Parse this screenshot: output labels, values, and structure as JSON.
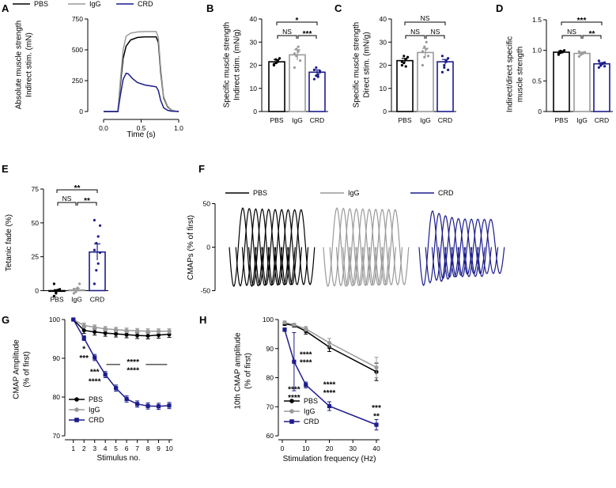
{
  "colors": {
    "pbs": "#000000",
    "igg": "#9a9a9a",
    "crd": "#1c1c8c"
  },
  "chart_data": [
    {
      "panel": "A",
      "type": "line",
      "ylabel_lines": [
        "Absolute muscle strength",
        "Indirect stim. (mN)"
      ],
      "xlabel": "Time (s)",
      "xlim": [
        0,
        1
      ],
      "ylim": [
        0,
        750
      ],
      "xticks": [
        0.0,
        0.5,
        1.0
      ],
      "yticks": [
        0,
        250,
        500,
        750
      ],
      "xtick_labels": [
        "0.0",
        "0.5",
        "1.0"
      ],
      "legend": [
        "PBS",
        "IgG",
        "CRD"
      ],
      "series": [
        {
          "name": "PBS",
          "color": "pbs",
          "x": [
            0,
            0.19,
            0.22,
            0.26,
            0.3,
            0.36,
            0.45,
            0.55,
            0.65,
            0.7,
            0.73,
            0.76,
            0.8,
            0.85,
            0.9,
            0.95,
            1.0
          ],
          "y": [
            0,
            0,
            200,
            430,
            530,
            580,
            600,
            605,
            605,
            605,
            560,
            320,
            110,
            40,
            12,
            3,
            0
          ]
        },
        {
          "name": "IgG",
          "color": "igg",
          "x": [
            0,
            0.19,
            0.22,
            0.26,
            0.3,
            0.36,
            0.45,
            0.55,
            0.65,
            0.7,
            0.73,
            0.76,
            0.8,
            0.85,
            0.9,
            0.95,
            1.0
          ],
          "y": [
            0,
            0,
            230,
            500,
            610,
            635,
            645,
            648,
            648,
            648,
            600,
            350,
            120,
            45,
            14,
            4,
            0
          ]
        },
        {
          "name": "CRD",
          "color": "crd",
          "x": [
            0,
            0.19,
            0.22,
            0.26,
            0.3,
            0.33,
            0.38,
            0.45,
            0.55,
            0.65,
            0.7,
            0.73,
            0.76,
            0.8,
            0.85,
            0.9,
            0.95,
            1.0
          ],
          "y": [
            0,
            0,
            120,
            260,
            310,
            305,
            270,
            235,
            215,
            205,
            200,
            170,
            90,
            30,
            10,
            3,
            1,
            0
          ]
        }
      ]
    },
    {
      "panel": "B",
      "type": "bar",
      "ylabel_lines": [
        "Specific muscle strength",
        "Indirect stim. (mN/g)"
      ],
      "categories": [
        "PBS",
        "IgG",
        "CRD"
      ],
      "color_keys": [
        "pbs",
        "igg",
        "crd"
      ],
      "values": [
        21.5,
        24.5,
        17
      ],
      "errors": [
        1.0,
        2.2,
        1.0
      ],
      "ylim": [
        0,
        40
      ],
      "yticks": [
        0,
        10,
        20,
        30,
        40
      ],
      "points": [
        [
          20,
          21,
          22,
          23,
          20.5,
          22.5,
          21.5
        ],
        [
          19,
          27,
          28,
          22,
          25,
          24,
          26
        ],
        [
          14,
          15.5,
          16,
          17,
          18,
          19,
          15,
          17.5
        ]
      ],
      "comparisons": [
        {
          "from": 0,
          "to": 1,
          "label": "NS",
          "level": 1
        },
        {
          "from": 1,
          "to": 2,
          "label": "***",
          "level": 1
        },
        {
          "from": 0,
          "to": 2,
          "label": "*",
          "level": 2
        }
      ]
    },
    {
      "panel": "C",
      "type": "bar",
      "ylabel_lines": [
        "Specific muscle strength",
        "Direct stim. (mN/g)"
      ],
      "categories": [
        "PBS",
        "IgG",
        "CRD"
      ],
      "color_keys": [
        "pbs",
        "igg",
        "crd"
      ],
      "values": [
        22,
        25.5,
        21.5
      ],
      "errors": [
        1.0,
        1.8,
        1.0
      ],
      "ylim": [
        0,
        40
      ],
      "yticks": [
        0,
        10,
        20,
        30,
        40
      ],
      "points": [
        [
          20,
          21,
          22.5,
          23.5,
          21.5,
          24,
          19.5
        ],
        [
          20,
          28,
          30,
          24,
          26,
          23.5,
          27
        ],
        [
          17,
          20,
          22,
          23,
          24,
          19,
          21.5,
          18
        ]
      ],
      "comparisons": [
        {
          "from": 0,
          "to": 1,
          "label": "NS",
          "level": 1
        },
        {
          "from": 1,
          "to": 2,
          "label": "NS",
          "level": 1
        },
        {
          "from": 0,
          "to": 2,
          "label": "NS",
          "level": 2
        }
      ]
    },
    {
      "panel": "D",
      "type": "bar",
      "ylabel_lines": [
        "Indirect/direct specific",
        "muscle strength"
      ],
      "categories": [
        "PBS",
        "IgG",
        "CRD"
      ],
      "color_keys": [
        "pbs",
        "igg",
        "crd"
      ],
      "values": [
        0.97,
        0.95,
        0.78
      ],
      "errors": [
        0.02,
        0.02,
        0.02
      ],
      "ylim": [
        0,
        1.5
      ],
      "yticks": [
        0,
        0.5,
        1.0,
        1.5
      ],
      "ytick_labels": [
        "0",
        "0.5",
        "1.0",
        "1.5"
      ],
      "points": [
        [
          0.93,
          0.96,
          0.98,
          1.0,
          0.95,
          0.99,
          0.97
        ],
        [
          0.9,
          0.93,
          0.95,
          0.97,
          0.98,
          0.94,
          0.96
        ],
        [
          0.72,
          0.75,
          0.78,
          0.8,
          0.83,
          0.76,
          0.79,
          0.74
        ]
      ],
      "comparisons": [
        {
          "from": 0,
          "to": 1,
          "label": "NS",
          "level": 1
        },
        {
          "from": 1,
          "to": 2,
          "label": "**",
          "level": 1
        },
        {
          "from": 0,
          "to": 2,
          "label": "***",
          "level": 2
        }
      ]
    },
    {
      "panel": "E",
      "type": "bar",
      "ylabel_lines": [
        "Tetanic fade (%)"
      ],
      "categories": [
        "PBS",
        "IgG",
        "CRD"
      ],
      "color_keys": [
        "pbs",
        "igg",
        "crd"
      ],
      "values": [
        -0.5,
        0.5,
        28.5
      ],
      "errors": [
        1.2,
        1.2,
        6.0
      ],
      "ylim": [
        -5,
        75
      ],
      "yticks": [
        0,
        25,
        50,
        75
      ],
      "points": [
        [
          -4,
          -2,
          0,
          1,
          5,
          -1,
          0.5
        ],
        [
          -2,
          0,
          2,
          5,
          1,
          -1,
          0.5
        ],
        [
          5,
          15,
          20,
          28,
          30,
          35,
          40,
          48,
          52
        ]
      ],
      "comparisons": [
        {
          "from": 0,
          "to": 1,
          "label": "NS",
          "level": 1
        },
        {
          "from": 1,
          "to": 2,
          "label": "**",
          "level": 1
        },
        {
          "from": 0,
          "to": 2,
          "label": "**",
          "level": 2
        }
      ]
    },
    {
      "panel": "F",
      "type": "line",
      "ylabel": "CMAPs (% of first)",
      "ylim": [
        -55,
        55
      ],
      "yticks": [
        -50,
        0,
        50
      ],
      "legend": [
        "PBS",
        "IgG",
        "CRD"
      ],
      "description": "10 superimposed CMAP traces per group",
      "groups": [
        {
          "name": "PBS",
          "color": "pbs",
          "amplitudes": [
            45,
            44.5,
            44,
            43.8,
            43.5,
            43.3,
            43.2,
            43.1,
            43,
            43
          ]
        },
        {
          "name": "IgG",
          "color": "igg",
          "amplitudes": [
            45,
            44.6,
            44.2,
            44,
            43.8,
            43.6,
            43.5,
            43.4,
            43.3,
            43.2
          ]
        },
        {
          "name": "CRD",
          "color": "crd",
          "amplitudes": [
            45,
            42,
            39,
            37,
            35.5,
            35,
            34.8,
            34.7,
            34.6,
            34.6
          ]
        }
      ]
    },
    {
      "panel": "G",
      "type": "line",
      "ylabel_lines": [
        "CMAP Amplitude",
        "(% of first)"
      ],
      "xlabel": "Stimulus no.",
      "xlim": [
        0.5,
        10
      ],
      "ylim": [
        70,
        100
      ],
      "xticks": [
        1,
        2,
        3,
        4,
        5,
        6,
        7,
        8,
        9,
        10
      ],
      "yticks": [
        70,
        80,
        90,
        100
      ],
      "legend": [
        "PBS",
        "IgG",
        "CRD"
      ],
      "series": [
        {
          "name": "PBS",
          "color": "pbs",
          "marker": "circle",
          "x": [
            1,
            2,
            3,
            4,
            5,
            6,
            7,
            8,
            9,
            10
          ],
          "y": [
            100,
            97.2,
            96.8,
            96.5,
            96.3,
            96.1,
            95.9,
            95.8,
            96,
            96.2
          ],
          "err": [
            0,
            0.8,
            0.8,
            0.8,
            0.8,
            0.8,
            0.8,
            0.8,
            0.8,
            0.8
          ]
        },
        {
          "name": "IgG",
          "color": "igg",
          "marker": "circle",
          "x": [
            1,
            2,
            3,
            4,
            5,
            6,
            7,
            8,
            9,
            10
          ],
          "y": [
            100,
            98.5,
            98,
            97.6,
            97.4,
            97.2,
            97.1,
            97,
            97,
            97
          ],
          "err": [
            0,
            0.6,
            0.6,
            0.6,
            0.6,
            0.6,
            0.6,
            0.6,
            0.6,
            0.6
          ]
        },
        {
          "name": "CRD",
          "color": "crd",
          "marker": "square",
          "x": [
            1,
            2,
            3,
            4,
            5,
            6,
            7,
            8,
            9,
            10
          ],
          "y": [
            100,
            95.2,
            90.2,
            85.8,
            82.3,
            79.5,
            78.2,
            77.7,
            77.6,
            77.8
          ],
          "err": [
            0,
            0.6,
            0.8,
            0.8,
            0.8,
            0.8,
            0.8,
            0.8,
            0.8,
            0.8
          ]
        }
      ],
      "annotations": [
        {
          "x": 2,
          "y": 92.6,
          "text": "*",
          "color": "pbs"
        },
        {
          "x": 2,
          "y": 90.2,
          "text": "***",
          "color": "igg"
        },
        {
          "x": 3,
          "y": 86.6,
          "text": "***",
          "color": "pbs"
        },
        {
          "x": 3,
          "y": 84.2,
          "text": "****",
          "color": "igg"
        },
        {
          "x": 6.6,
          "y": 89.2,
          "text": "****",
          "color": "pbs"
        },
        {
          "x": 6.6,
          "y": 87.0,
          "text": "****",
          "color": "igg"
        }
      ],
      "brackets": [
        {
          "x1": 4.1,
          "x2": 5.4,
          "y": 88.4,
          "color": "pbs"
        },
        {
          "x1": 7.8,
          "x2": 9.8,
          "y": 88.4,
          "color": "pbs"
        }
      ]
    },
    {
      "panel": "H",
      "type": "line",
      "ylabel_lines": [
        "10th CMAP amplitude",
        "(% of first)"
      ],
      "xlabel": "Stimulation frequency (Hz)",
      "xlim": [
        0,
        40
      ],
      "ylim": [
        60,
        100
      ],
      "xticks": [
        0,
        10,
        20,
        30,
        40
      ],
      "yticks": [
        60,
        70,
        80,
        90,
        100
      ],
      "legend": [
        "PBS",
        "IgG",
        "CRD"
      ],
      "series": [
        {
          "name": "PBS",
          "color": "pbs",
          "marker": "circle",
          "x": [
            1,
            5,
            10,
            20,
            40
          ],
          "y": [
            98.5,
            98,
            96,
            90.5,
            82
          ],
          "err": [
            0.5,
            0.6,
            1.0,
            1.5,
            3.0
          ]
        },
        {
          "name": "IgG",
          "color": "igg",
          "marker": "circle",
          "x": [
            1,
            5,
            10,
            20,
            40
          ],
          "y": [
            99,
            98.2,
            96.8,
            92,
            83.5
          ],
          "err": [
            0.5,
            0.5,
            0.8,
            1.5,
            3.5
          ]
        },
        {
          "name": "CRD",
          "color": "crd",
          "marker": "square",
          "x": [
            1,
            5,
            10,
            20,
            40
          ],
          "y": [
            96.5,
            85.5,
            77.5,
            70.2,
            63.8
          ],
          "err": [
            0.6,
            10,
            1.0,
            1.5,
            1.8
          ]
        }
      ],
      "annotations": [
        {
          "x": 10,
          "y": 88.2,
          "text": "****",
          "color": "pbs"
        },
        {
          "x": 10,
          "y": 85.4,
          "text": "****",
          "color": "igg"
        },
        {
          "x": 5,
          "y": 76.2,
          "text": "****",
          "color": "pbs"
        },
        {
          "x": 5,
          "y": 73.4,
          "text": "****",
          "color": "igg"
        },
        {
          "x": 20,
          "y": 77.8,
          "text": "****",
          "color": "pbs"
        },
        {
          "x": 20,
          "y": 75.0,
          "text": "****",
          "color": "igg"
        },
        {
          "x": 40,
          "y": 69.8,
          "text": "***",
          "color": "pbs"
        },
        {
          "x": 40,
          "y": 67.0,
          "text": "**",
          "color": "igg"
        }
      ]
    }
  ]
}
